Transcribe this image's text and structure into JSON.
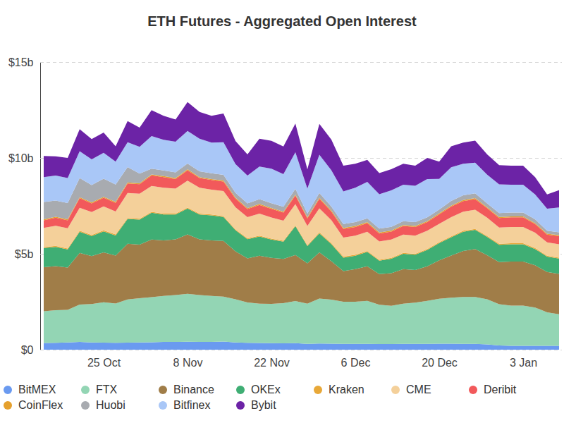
{
  "chart_data": {
    "type": "area",
    "title": "ETH Futures - Aggregated Open Interest",
    "stacked": true,
    "grid": true,
    "legend": "bottom",
    "categories": [
      null,
      null,
      null,
      null,
      null,
      "25 Oct",
      null,
      null,
      null,
      null,
      null,
      null,
      "8 Nov",
      null,
      null,
      null,
      null,
      null,
      null,
      "22 Nov",
      null,
      null,
      null,
      null,
      null,
      null,
      "6 Dec",
      null,
      null,
      null,
      null,
      null,
      null,
      "20 Dec",
      null,
      null,
      null,
      null,
      null,
      null,
      "3 Jan",
      null,
      null,
      null
    ],
    "ylim": [
      0,
      15
    ],
    "yticks": [
      {
        "value": 0,
        "label": "$0"
      },
      {
        "value": 5,
        "label": "$5b"
      },
      {
        "value": 10,
        "label": "$10b"
      },
      {
        "value": 15,
        "label": "$15b"
      }
    ],
    "series": [
      {
        "name": "BitMEX",
        "color": "#6a9af0",
        "values": [
          0.35,
          0.36,
          0.38,
          0.4,
          0.38,
          0.37,
          0.36,
          0.37,
          0.38,
          0.39,
          0.4,
          0.4,
          0.41,
          0.4,
          0.4,
          0.42,
          0.38,
          0.36,
          0.35,
          0.34,
          0.33,
          0.34,
          0.3,
          0.32,
          0.31,
          0.3,
          0.3,
          0.3,
          0.29,
          0.29,
          0.3,
          0.3,
          0.3,
          0.31,
          0.31,
          0.3,
          0.3,
          0.28,
          0.22,
          0.2,
          0.2,
          0.2,
          0.2,
          0.2
        ]
      },
      {
        "name": "FTX",
        "color": "#93d5b4",
        "values": [
          1.65,
          1.7,
          1.7,
          1.95,
          2.0,
          2.1,
          2.05,
          2.25,
          2.3,
          2.35,
          2.4,
          2.45,
          2.5,
          2.45,
          2.4,
          2.35,
          2.25,
          2.1,
          2.05,
          2.05,
          2.1,
          2.2,
          2.1,
          2.35,
          2.3,
          2.2,
          2.2,
          2.25,
          2.05,
          2.0,
          2.1,
          2.15,
          2.25,
          2.35,
          2.4,
          2.45,
          2.45,
          2.35,
          2.15,
          2.1,
          2.1,
          2.0,
          1.75,
          1.65
        ]
      },
      {
        "name": "Binance",
        "color": "#a07d48",
        "values": [
          2.3,
          2.3,
          2.2,
          2.7,
          2.5,
          2.6,
          2.5,
          2.9,
          2.8,
          3.0,
          2.9,
          2.9,
          3.1,
          2.9,
          2.9,
          2.9,
          2.5,
          2.3,
          2.5,
          2.4,
          2.3,
          2.4,
          2.1,
          2.4,
          2.0,
          1.6,
          1.7,
          1.8,
          1.6,
          1.7,
          1.8,
          1.7,
          1.8,
          2.0,
          2.2,
          2.4,
          2.5,
          2.3,
          2.2,
          2.3,
          2.3,
          2.2,
          2.1,
          2.1
        ]
      },
      {
        "name": "OKEx",
        "color": "#3fae74",
        "values": [
          1.0,
          1.0,
          0.95,
          1.1,
          1.05,
          1.1,
          1.05,
          1.3,
          1.3,
          1.4,
          1.35,
          1.3,
          1.35,
          1.3,
          1.3,
          1.25,
          1.1,
          1.0,
          1.0,
          0.95,
          0.9,
          1.5,
          0.9,
          1.0,
          0.9,
          0.7,
          0.7,
          0.75,
          0.7,
          0.75,
          0.8,
          0.8,
          0.85,
          0.9,
          0.95,
          1.0,
          1.0,
          0.95,
          0.9,
          0.9,
          0.9,
          0.85,
          0.8,
          0.8
        ]
      },
      {
        "name": "Kraken",
        "color": "#e8a838",
        "values": [
          0.05,
          0.05,
          0.05,
          0.05,
          0.05,
          0.05,
          0.05,
          0.05,
          0.05,
          0.05,
          0.05,
          0.05,
          0.05,
          0.05,
          0.05,
          0.05,
          0.05,
          0.05,
          0.05,
          0.05,
          0.05,
          0.05,
          0.05,
          0.05,
          0.05,
          0.05,
          0.05,
          0.05,
          0.05,
          0.05,
          0.05,
          0.05,
          0.05,
          0.05,
          0.05,
          0.05,
          0.05,
          0.05,
          0.05,
          0.05,
          0.05,
          0.05,
          0.05,
          0.05
        ]
      },
      {
        "name": "CME",
        "color": "#f4d09a",
        "values": [
          1.0,
          1.05,
          1.05,
          1.2,
          1.2,
          1.25,
          1.2,
          1.3,
          1.3,
          1.35,
          1.35,
          1.3,
          1.4,
          1.35,
          1.3,
          1.3,
          1.15,
          1.1,
          1.15,
          1.1,
          1.05,
          1.1,
          1.0,
          1.25,
          1.2,
          1.0,
          1.0,
          1.0,
          0.95,
          0.95,
          0.95,
          0.95,
          0.95,
          0.95,
          1.0,
          1.0,
          1.0,
          0.95,
          0.85,
          0.85,
          0.85,
          0.8,
          0.7,
          0.7
        ]
      },
      {
        "name": "Deribit",
        "color": "#f2595b",
        "values": [
          0.4,
          0.42,
          0.42,
          0.5,
          0.45,
          0.45,
          0.45,
          0.5,
          0.5,
          0.55,
          0.55,
          0.5,
          0.55,
          0.5,
          0.5,
          0.5,
          0.45,
          0.42,
          0.45,
          0.45,
          0.42,
          0.45,
          0.4,
          0.5,
          0.45,
          0.45,
          0.45,
          0.45,
          0.42,
          0.42,
          0.45,
          0.45,
          0.45,
          0.5,
          0.55,
          0.55,
          0.55,
          0.5,
          0.5,
          0.5,
          0.5,
          0.45,
          0.4,
          0.42
        ]
      },
      {
        "name": "CoinFlex",
        "color": "#e5a02d",
        "values": [
          0.05,
          0.05,
          0.05,
          0.05,
          0.05,
          0.05,
          0.05,
          0.05,
          0.05,
          0.05,
          0.05,
          0.05,
          0.05,
          0.05,
          0.05,
          0.05,
          0.05,
          0.05,
          0.05,
          0.05,
          0.05,
          0.05,
          0.05,
          0.05,
          0.05,
          0.05,
          0.05,
          0.05,
          0.05,
          0.05,
          0.05,
          0.05,
          0.05,
          0.05,
          0.05,
          0.05,
          0.05,
          0.05,
          0.05,
          0.05,
          0.05,
          0.05,
          0.05,
          0.05
        ]
      },
      {
        "name": "Huobi",
        "color": "#a8abb0",
        "values": [
          0.9,
          0.85,
          0.85,
          1.0,
          0.9,
          0.95,
          0.9,
          0.8,
          0.5,
          0.3,
          0.3,
          0.3,
          0.3,
          0.3,
          0.3,
          0.3,
          0.25,
          0.25,
          0.25,
          0.25,
          0.25,
          0.3,
          0.2,
          0.25,
          0.2,
          0.2,
          0.2,
          0.2,
          0.2,
          0.2,
          0.2,
          0.2,
          0.2,
          0.2,
          0.25,
          0.25,
          0.25,
          0.2,
          0.2,
          0.2,
          0.2,
          0.2,
          0.15,
          0.15
        ]
      },
      {
        "name": "Bitfinex",
        "color": "#a9c7f7",
        "values": [
          1.3,
          1.3,
          1.3,
          1.4,
          1.35,
          1.35,
          1.2,
          1.3,
          1.4,
          1.7,
          1.6,
          1.6,
          1.7,
          1.7,
          1.6,
          1.7,
          1.5,
          1.45,
          1.7,
          1.8,
          1.7,
          1.9,
          1.3,
          2.0,
          1.9,
          1.7,
          1.8,
          1.9,
          1.8,
          1.9,
          1.9,
          1.9,
          2.0,
          1.6,
          1.75,
          1.65,
          1.6,
          1.5,
          1.5,
          1.45,
          1.45,
          1.3,
          1.15,
          1.3
        ]
      },
      {
        "name": "Bybit",
        "color": "#6c23a6",
        "values": [
          1.1,
          1.0,
          1.05,
          1.15,
          1.05,
          1.05,
          0.8,
          1.1,
          1.0,
          1.35,
          1.25,
          1.15,
          1.5,
          1.4,
          1.4,
          1.5,
          1.2,
          1.1,
          1.45,
          1.45,
          1.45,
          1.5,
          1.0,
          1.6,
          1.6,
          1.35,
          1.25,
          1.15,
          1.1,
          1.1,
          1.1,
          1.05,
          1.1,
          0.9,
          1.1,
          1.1,
          1.15,
          1.05,
          1.0,
          1.0,
          1.0,
          0.9,
          0.75,
          0.9
        ]
      }
    ]
  }
}
